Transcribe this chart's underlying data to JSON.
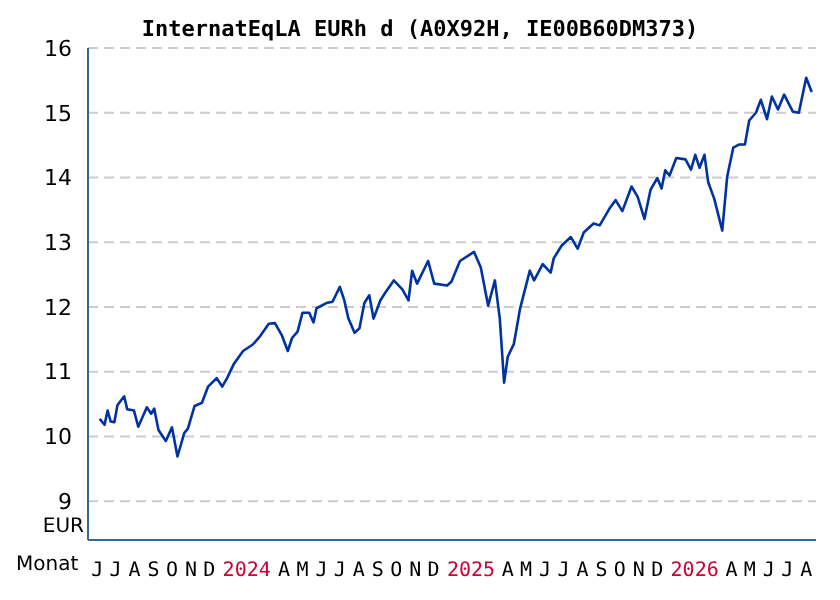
{
  "chart_data": {
    "type": "line",
    "title": "InternatEqLA EURh d (A0X92H, IE00B60DM373)",
    "xlabel": "Monat",
    "ylabel": "EUR",
    "x": [
      "2023-06-20",
      "2023-06-28",
      "2023-07-03",
      "2023-07-08",
      "2023-07-14",
      "2023-07-19",
      "2023-07-30",
      "2023-08-04",
      "2023-08-15",
      "2023-08-22",
      "2023-09-05",
      "2023-09-12",
      "2023-09-17",
      "2023-09-24",
      "2023-10-06",
      "2023-10-16",
      "2023-10-25",
      "2023-11-05",
      "2023-11-11",
      "2023-11-22",
      "2023-12-04",
      "2023-12-14",
      "2023-12-28",
      "2024-01-06",
      "2024-01-14",
      "2024-01-25",
      "2024-02-09",
      "2024-02-25",
      "2024-03-08",
      "2024-03-22",
      "2024-04-01",
      "2024-04-12",
      "2024-04-22",
      "2024-04-29",
      "2024-05-08",
      "2024-05-16",
      "2024-05-27",
      "2024-06-03",
      "2024-06-08",
      "2024-06-24",
      "2024-07-04",
      "2024-07-16",
      "2024-07-23",
      "2024-07-30",
      "2024-08-09",
      "2024-08-17",
      "2024-08-25",
      "2024-09-02",
      "2024-09-09",
      "2024-09-20",
      "2024-09-28",
      "2024-10-12",
      "2024-10-26",
      "2024-11-05",
      "2024-11-11",
      "2024-11-19",
      "2024-12-07",
      "2024-12-17",
      "2025-01-07",
      "2025-01-14",
      "2025-01-28",
      "2025-02-20",
      "2025-03-03",
      "2025-03-15",
      "2025-03-26",
      "2025-04-03",
      "2025-04-10",
      "2025-04-16",
      "2025-04-26",
      "2025-05-06",
      "2025-05-22",
      "2025-05-29",
      "2025-06-12",
      "2025-06-25",
      "2025-06-30",
      "2025-07-13",
      "2025-07-28",
      "2025-08-08",
      "2025-08-18",
      "2025-09-03",
      "2025-09-13",
      "2025-09-29",
      "2025-10-09",
      "2025-10-20",
      "2025-11-04",
      "2025-11-14",
      "2025-11-25",
      "2025-12-05",
      "2025-12-16",
      "2025-12-23",
      "2025-12-29",
      "2026-01-05",
      "2026-01-16",
      "2026-01-31",
      "2026-02-09",
      "2026-02-16",
      "2026-02-23",
      "2026-03-03",
      "2026-03-09",
      "2026-03-19",
      "2026-04-01",
      "2026-04-09",
      "2026-04-19",
      "2026-04-29",
      "2026-05-08",
      "2026-05-15",
      "2026-05-26",
      "2026-06-03",
      "2026-06-13",
      "2026-06-21",
      "2026-07-01",
      "2026-07-11",
      "2026-07-25",
      "2026-08-04",
      "2026-08-16",
      "2026-08-25"
    ],
    "series": [
      {
        "color": "#0033a0",
        "values": [
          10.27,
          10.18,
          10.4,
          10.23,
          10.22,
          10.48,
          10.62,
          10.42,
          10.4,
          10.15,
          10.45,
          10.35,
          10.43,
          10.1,
          9.93,
          10.14,
          9.69,
          10.05,
          10.12,
          10.47,
          10.52,
          10.77,
          10.9,
          10.77,
          10.9,
          11.12,
          11.32,
          11.42,
          11.55,
          11.74,
          11.75,
          11.57,
          11.32,
          11.52,
          11.62,
          11.91,
          11.91,
          11.76,
          11.98,
          12.06,
          12.08,
          12.31,
          12.11,
          11.82,
          11.6,
          11.67,
          12.06,
          12.18,
          11.82,
          12.1,
          12.22,
          12.41,
          12.27,
          12.1,
          12.56,
          12.36,
          12.71,
          12.36,
          12.33,
          12.39,
          12.71,
          12.85,
          12.61,
          12.02,
          12.41,
          11.82,
          10.83,
          11.23,
          11.43,
          11.97,
          12.56,
          12.41,
          12.66,
          12.53,
          12.75,
          12.95,
          13.08,
          12.9,
          13.15,
          13.29,
          13.26,
          13.52,
          13.65,
          13.48,
          13.86,
          13.7,
          13.36,
          13.81,
          13.99,
          13.83,
          14.11,
          14.03,
          14.3,
          14.28,
          14.12,
          14.35,
          14.15,
          14.35,
          13.93,
          13.67,
          13.18,
          14.01,
          14.46,
          14.51,
          14.51,
          14.88,
          15.0,
          15.2,
          14.9,
          15.25,
          15.05,
          15.28,
          15.02,
          15.0,
          15.54,
          15.32
        ]
      }
    ],
    "xlim": [
      "2023-06-01",
      "2026-09-01"
    ],
    "xticks": [
      {
        "value": "2023-06-16",
        "label": "J"
      },
      {
        "value": "2023-07-16",
        "label": "J"
      },
      {
        "value": "2023-08-16",
        "label": "A"
      },
      {
        "value": "2023-09-16",
        "label": "S"
      },
      {
        "value": "2023-10-16",
        "label": "O"
      },
      {
        "value": "2023-11-16",
        "label": "N"
      },
      {
        "value": "2023-12-16",
        "label": "D"
      },
      {
        "value": "2024-02-15",
        "label": "2024"
      },
      {
        "value": "2024-04-16",
        "label": "A"
      },
      {
        "value": "2024-05-16",
        "label": "M"
      },
      {
        "value": "2024-06-16",
        "label": "J"
      },
      {
        "value": "2024-07-16",
        "label": "J"
      },
      {
        "value": "2024-08-16",
        "label": "A"
      },
      {
        "value": "2024-09-16",
        "label": "S"
      },
      {
        "value": "2024-10-16",
        "label": "O"
      },
      {
        "value": "2024-11-16",
        "label": "N"
      },
      {
        "value": "2024-12-16",
        "label": "D"
      },
      {
        "value": "2025-02-15",
        "label": "2025"
      },
      {
        "value": "2025-04-16",
        "label": "A"
      },
      {
        "value": "2025-05-16",
        "label": "M"
      },
      {
        "value": "2025-06-16",
        "label": "J"
      },
      {
        "value": "2025-07-16",
        "label": "J"
      },
      {
        "value": "2025-08-16",
        "label": "A"
      },
      {
        "value": "2025-09-16",
        "label": "S"
      },
      {
        "value": "2025-10-16",
        "label": "O"
      },
      {
        "value": "2025-11-16",
        "label": "N"
      },
      {
        "value": "2025-12-16",
        "label": "D"
      },
      {
        "value": "2026-02-15",
        "label": "2026"
      },
      {
        "value": "2026-04-16",
        "label": "A"
      },
      {
        "value": "2026-05-16",
        "label": "M"
      },
      {
        "value": "2026-06-16",
        "label": "J"
      },
      {
        "value": "2026-07-16",
        "label": "J"
      },
      {
        "value": "2026-08-16",
        "label": "A"
      }
    ],
    "ylim": [
      8.4,
      16
    ],
    "yticks": [
      9,
      10,
      11,
      12,
      13,
      14,
      15,
      16
    ],
    "grid": "y",
    "marker": "none",
    "line_style": "solid"
  }
}
